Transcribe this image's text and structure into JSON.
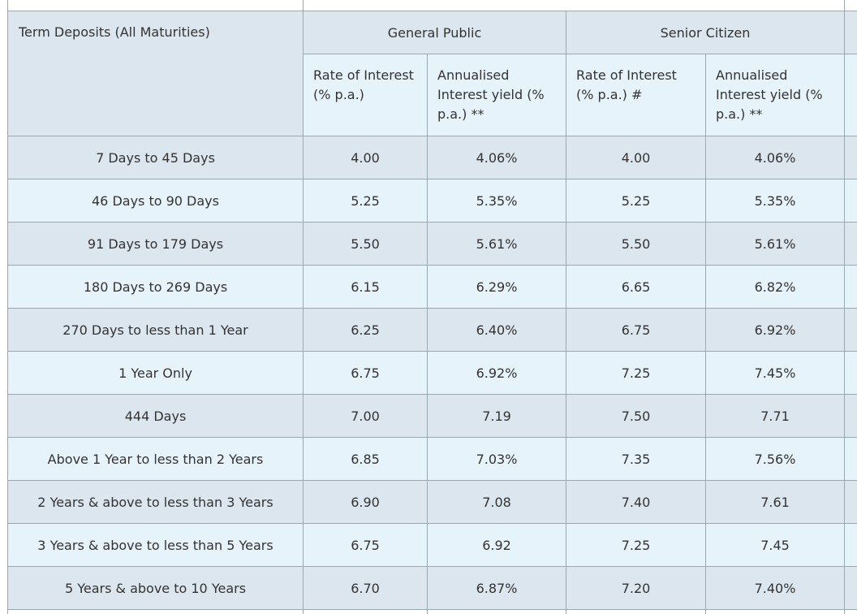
{
  "table": {
    "header": {
      "term_label": "Term Deposits (All Maturities)",
      "group_general": "General Public",
      "group_senior": "Senior Citizen",
      "general_rate_label": "Rate of Interest (% p.a.)",
      "general_yield_label": "Annualised Interest yield (% p.a.) **",
      "senior_rate_label": "Rate of Interest (% p.a.) #",
      "senior_yield_label": "Annualised Interest yield (% p.a.) **"
    },
    "rows": [
      {
        "term": "7 Days to 45 Days",
        "gp_rate": "4.00",
        "gp_yield": "4.06%",
        "sc_rate": "4.00",
        "sc_yield": "4.06%"
      },
      {
        "term": "46 Days to 90 Days",
        "gp_rate": "5.25",
        "gp_yield": "5.35%",
        "sc_rate": "5.25",
        "sc_yield": "5.35%"
      },
      {
        "term": "91 Days to 179 Days",
        "gp_rate": "5.50",
        "gp_yield": "5.61%",
        "sc_rate": "5.50",
        "sc_yield": "5.61%"
      },
      {
        "term": "180 Days to 269 Days",
        "gp_rate": "6.15",
        "gp_yield": "6.29%",
        "sc_rate": "6.65",
        "sc_yield": "6.82%"
      },
      {
        "term": "270 Days to less than 1 Year",
        "gp_rate": "6.25",
        "gp_yield": "6.40%",
        "sc_rate": "6.75",
        "sc_yield": "6.92%"
      },
      {
        "term": "1 Year Only",
        "gp_rate": "6.75",
        "gp_yield": "6.92%",
        "sc_rate": "7.25",
        "sc_yield": "7.45%"
      },
      {
        "term": "444 Days",
        "gp_rate": "7.00",
        "gp_yield": "7.19",
        "sc_rate": "7.50",
        "sc_yield": "7.71"
      },
      {
        "term": "Above 1 Year to less than 2 Years",
        "gp_rate": "6.85",
        "gp_yield": "7.03%",
        "sc_rate": "7.35",
        "sc_yield": "7.56%"
      },
      {
        "term": "2 Years & above to less than 3 Years",
        "gp_rate": "6.90",
        "gp_yield": "7.08",
        "sc_rate": "7.40",
        "sc_yield": "7.61"
      },
      {
        "term": "3 Years & above to less than 5 Years",
        "gp_rate": "6.75",
        "gp_yield": "6.92",
        "sc_rate": "7.25",
        "sc_yield": "7.45"
      },
      {
        "term": "5 Years & above to 10 Years",
        "gp_rate": "6.70",
        "gp_yield": "6.87%",
        "sc_rate": "7.20",
        "sc_yield": "7.40%"
      }
    ]
  }
}
